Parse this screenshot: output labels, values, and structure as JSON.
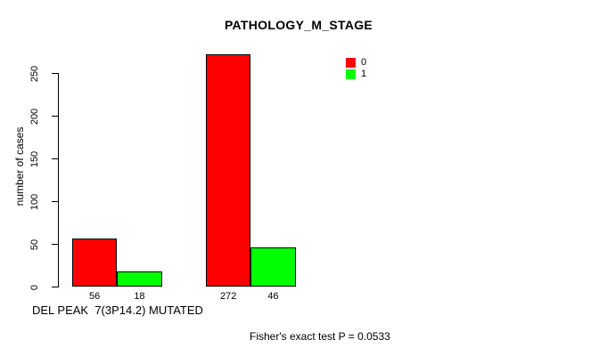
{
  "chart_data": {
    "type": "bar",
    "title": "PATHOLOGY_M_STAGE",
    "ylabel": "number of cases",
    "xlabel": "DEL PEAK  7(3P14.2) MUTATED",
    "footnote": "Fisher's exact test P = 0.0533",
    "ylim": [
      0,
      250
    ],
    "yticks": [
      0,
      50,
      100,
      150,
      200,
      250
    ],
    "grid": false,
    "legend_position": "top-right",
    "series": [
      {
        "name": "0",
        "color": "#ff0000",
        "values": [
          56,
          272
        ]
      },
      {
        "name": "1",
        "color": "#00ff00",
        "values": [
          18,
          46
        ]
      }
    ],
    "bar_value_labels": [
      [
        "56",
        "272"
      ],
      [
        "18",
        "46"
      ]
    ],
    "colors": {
      "bar_border": "#000000",
      "axis": "#000000",
      "text": "#000000",
      "background": "#ffffff"
    }
  }
}
